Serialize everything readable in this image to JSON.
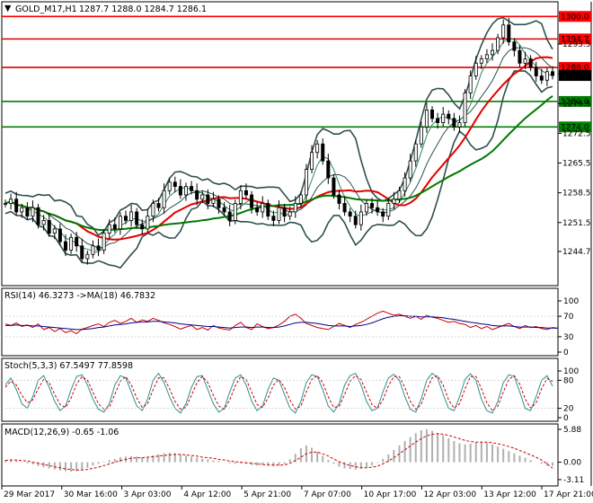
{
  "chart_data": {
    "type": "line",
    "instrument": {
      "header": "GOLD_M17,H1",
      "ohlc": "1287.7 1288.0 1284.7 1286.1",
      "menu_glyph": "▼"
    },
    "time_axis": {
      "labels": [
        "29 Mar 2017",
        "30 Mar 16:00",
        "3 Apr 03:00",
        "4 Apr 12:00",
        "5 Apr 21:00",
        "7 Apr 07:00",
        "10 Apr 17:00",
        "12 Apr 03:00",
        "13 Apr 12:00",
        "17 Apr 21:00"
      ]
    },
    "price_panel": {
      "ylim": [
        1237.5,
        1302.6
      ],
      "tick_labels": [
        "1244.7",
        "1251.5",
        "1258.5",
        "1265.5",
        "1272.5",
        "1279.5",
        "1286.5",
        "1293.5"
      ],
      "tick_values": [
        1244.7,
        1251.5,
        1258.5,
        1265.5,
        1272.5,
        1279.5,
        1286.5,
        1293.5
      ],
      "levels": [
        {
          "label": "1300.0",
          "value": 1300.0,
          "color": "#ff0000",
          "box": "#ff0000"
        },
        {
          "label": "1294.7",
          "value": 1294.7,
          "color": "#dd0000",
          "box": "#ff0000"
        },
        {
          "label": "1288.0",
          "value": 1288.0,
          "color": "#dd0000",
          "box": "#ff0000"
        },
        {
          "label": "1280.0",
          "value": 1280.0,
          "color": "#008000",
          "box": "#008000"
        },
        {
          "label": "1274.0",
          "value": 1274.0,
          "color": "#008000",
          "box": "#008000"
        }
      ],
      "current_price": {
        "label": "1286.1",
        "value": 1286.1
      },
      "close_series": [
        1256,
        1257,
        1254,
        1255,
        1253,
        1255,
        1251,
        1252,
        1249,
        1250,
        1247,
        1245,
        1248,
        1246,
        1243,
        1244,
        1246,
        1245,
        1249,
        1251,
        1250,
        1253,
        1252,
        1254,
        1251,
        1250,
        1253,
        1256,
        1255,
        1259,
        1261,
        1260,
        1258,
        1260,
        1259,
        1257,
        1258,
        1256,
        1257,
        1255,
        1254,
        1252,
        1256,
        1259,
        1258,
        1255,
        1254,
        1256,
        1253,
        1252,
        1255,
        1253,
        1254,
        1256,
        1258,
        1264,
        1268,
        1270,
        1266,
        1262,
        1258,
        1256,
        1254,
        1253,
        1251,
        1254,
        1256,
        1255,
        1254,
        1253,
        1256,
        1257,
        1259,
        1262,
        1266,
        1270,
        1274,
        1278,
        1276,
        1275,
        1277,
        1276,
        1274,
        1275,
        1282,
        1286,
        1289,
        1290,
        1291,
        1292,
        1295,
        1298,
        1294,
        1292,
        1289,
        1290,
        1288,
        1286,
        1285,
        1287,
        1286.1
      ]
    },
    "rsi_panel": {
      "title": "RSI(14) 46.3273 ->MA(18) 46.7832",
      "ylim": [
        0,
        100
      ],
      "tick_labels": [
        "100",
        "70",
        "30",
        "0"
      ],
      "tick_values": [
        100,
        70,
        30,
        0
      ],
      "rsi_last": 46.3273,
      "ma_last": 46.7832,
      "rsi_series": [
        55,
        52,
        57,
        50,
        53,
        48,
        55,
        44,
        48,
        40,
        46,
        38,
        42,
        36,
        45,
        48,
        52,
        55,
        50,
        58,
        62,
        56,
        60,
        66,
        58,
        63,
        60,
        66,
        62,
        57,
        54,
        50,
        45,
        49,
        52,
        44,
        48,
        43,
        52,
        47,
        45,
        43,
        52,
        58,
        48,
        44,
        55,
        50,
        46,
        48,
        53,
        60,
        70,
        74,
        66,
        56,
        52,
        48,
        46,
        44,
        50,
        56,
        52,
        48,
        54,
        58,
        64,
        70,
        76,
        80,
        76,
        72,
        74,
        70,
        66,
        70,
        64,
        72,
        68,
        66,
        62,
        58,
        60,
        56,
        54,
        48,
        52,
        46,
        50,
        44,
        48,
        52,
        56,
        50,
        46,
        52,
        48,
        50,
        46,
        44,
        48,
        46.33
      ],
      "ma_series": [
        52,
        52,
        53,
        52,
        52,
        51,
        51,
        50,
        49,
        48,
        47,
        46,
        45,
        44,
        44,
        45,
        46,
        48,
        49,
        51,
        53,
        54,
        55,
        57,
        58,
        59,
        59,
        60,
        60,
        59,
        58,
        57,
        55,
        54,
        53,
        52,
        51,
        50,
        50,
        49,
        48,
        47,
        48,
        49,
        49,
        48,
        49,
        49,
        48,
        48,
        49,
        51,
        54,
        57,
        58,
        58,
        57,
        56,
        54,
        52,
        51,
        51,
        51,
        50,
        51,
        52,
        54,
        57,
        61,
        65,
        68,
        70,
        71,
        71,
        70,
        70,
        69,
        69,
        69,
        68,
        67,
        65,
        64,
        62,
        60,
        58,
        57,
        55,
        54,
        52,
        51,
        51,
        51,
        50,
        49,
        49,
        49,
        48,
        48,
        47,
        47,
        46.78
      ]
    },
    "stoch_panel": {
      "title": "Stoch(5,3,3) 67.5497 77.8598",
      "ylim": [
        0,
        100
      ],
      "tick_labels": [
        "100",
        "80",
        "20",
        "0"
      ],
      "tick_values": [
        100,
        80,
        20,
        0
      ],
      "k_last": 67.5497,
      "d_last": 77.8598,
      "k_series": [
        70,
        85,
        60,
        30,
        20,
        45,
        80,
        90,
        65,
        35,
        15,
        25,
        60,
        88,
        92,
        70,
        40,
        18,
        12,
        30,
        70,
        90,
        85,
        55,
        25,
        15,
        40,
        80,
        95,
        75,
        45,
        20,
        10,
        30,
        65,
        88,
        90,
        60,
        30,
        12,
        20,
        55,
        85,
        92,
        70,
        35,
        15,
        25,
        60,
        85,
        80,
        50,
        20,
        10,
        35,
        75,
        92,
        88,
        60,
        25,
        12,
        30,
        70,
        90,
        95,
        70,
        35,
        15,
        20,
        55,
        85,
        93,
        80,
        45,
        18,
        12,
        40,
        80,
        95,
        85,
        50,
        20,
        15,
        45,
        82,
        94,
        80,
        40,
        15,
        10,
        35,
        75,
        92,
        88,
        55,
        20,
        15,
        45,
        80,
        90,
        67.55
      ],
      "d_series": [
        65,
        78,
        70,
        48,
        32,
        38,
        62,
        82,
        75,
        50,
        28,
        22,
        42,
        72,
        88,
        80,
        55,
        30,
        18,
        22,
        50,
        78,
        88,
        70,
        42,
        22,
        30,
        60,
        85,
        85,
        62,
        35,
        18,
        22,
        48,
        75,
        88,
        75,
        48,
        25,
        18,
        38,
        68,
        88,
        82,
        55,
        28,
        22,
        42,
        70,
        82,
        65,
        38,
        18,
        25,
        55,
        82,
        90,
        75,
        45,
        22,
        24,
        50,
        78,
        90,
        82,
        55,
        28,
        20,
        38,
        68,
        88,
        88,
        65,
        35,
        18,
        28,
        60,
        85,
        90,
        70,
        38,
        20,
        30,
        62,
        88,
        88,
        62,
        32,
        15,
        25,
        55,
        82,
        90,
        72,
        40,
        20,
        32,
        62,
        84,
        77.86
      ]
    },
    "macd_panel": {
      "title": "MACD(12,26,9) -0.65 -1.06",
      "ylim": [
        -3.6,
        6.2
      ],
      "tick_labels": [
        "5.88",
        "0.00",
        "-3.11"
      ],
      "tick_values": [
        5.88,
        0.0,
        -3.11
      ],
      "macd_last": -0.65,
      "signal_last": -1.06,
      "histogram": [
        0.4,
        0.5,
        0.3,
        0.1,
        -0.2,
        -0.4,
        -0.7,
        -0.9,
        -1.1,
        -1.3,
        -1.5,
        -1.6,
        -1.7,
        -1.6,
        -1.3,
        -1.0,
        -0.6,
        -0.3,
        0.1,
        0.4,
        0.6,
        0.9,
        1.0,
        1.1,
        1.0,
        0.9,
        1.0,
        1.2,
        1.4,
        1.6,
        1.7,
        1.6,
        1.4,
        1.2,
        1.0,
        0.8,
        0.6,
        0.5,
        0.3,
        0.2,
        0.0,
        -0.2,
        -0.3,
        -0.2,
        -0.3,
        -0.5,
        -0.6,
        -0.5,
        -0.6,
        -0.7,
        -0.6,
        -0.3,
        0.5,
        1.5,
        2.5,
        3.0,
        2.6,
        1.9,
        1.1,
        0.4,
        -0.3,
        -0.8,
        -1.1,
        -1.2,
        -1.3,
        -1.2,
        -1.0,
        -0.6,
        -0.1,
        0.6,
        1.4,
        2.2,
        3.0,
        3.8,
        4.5,
        5.2,
        5.7,
        5.9,
        5.6,
        5.2,
        4.8,
        4.3,
        3.8,
        3.4,
        3.2,
        3.3,
        3.5,
        3.6,
        3.5,
        3.2,
        2.8,
        2.4,
        2.0,
        1.6,
        1.2,
        0.8,
        0.4,
        0.0,
        -0.3,
        -0.6,
        -0.65
      ],
      "signal": [
        0.3,
        0.4,
        0.4,
        0.3,
        0.2,
        0.0,
        -0.2,
        -0.4,
        -0.6,
        -0.8,
        -1.0,
        -1.2,
        -1.3,
        -1.4,
        -1.4,
        -1.3,
        -1.1,
        -0.9,
        -0.6,
        -0.3,
        0.0,
        0.3,
        0.5,
        0.7,
        0.8,
        0.8,
        0.9,
        1.0,
        1.1,
        1.2,
        1.3,
        1.4,
        1.4,
        1.3,
        1.2,
        1.1,
        0.9,
        0.8,
        0.7,
        0.5,
        0.4,
        0.2,
        0.1,
        0.0,
        -0.1,
        -0.2,
        -0.3,
        -0.4,
        -0.5,
        -0.5,
        -0.5,
        -0.5,
        -0.2,
        0.3,
        0.9,
        1.5,
        1.8,
        1.8,
        1.5,
        1.1,
        0.6,
        0.1,
        -0.3,
        -0.6,
        -0.8,
        -1.0,
        -1.0,
        -0.9,
        -0.7,
        -0.3,
        0.2,
        0.8,
        1.5,
        2.2,
        2.9,
        3.6,
        4.2,
        4.7,
        5.0,
        5.1,
        5.0,
        4.8,
        4.5,
        4.2,
        3.9,
        3.7,
        3.6,
        3.6,
        3.6,
        3.5,
        3.3,
        3.1,
        2.8,
        2.5,
        2.1,
        1.7,
        1.3,
        0.9,
        0.4,
        -0.3,
        -1.06
      ]
    },
    "colors": {
      "candle": "#000000",
      "bollinger": "#2f4f4f",
      "ma_fast": "#2e8b57",
      "ma_slow_red": "#e60000",
      "ma_slow_green": "#007a00",
      "rsi": "#cc0000",
      "rsi_ma": "#00008b",
      "stoch_k": "#2f8f8f",
      "stoch_d": "#cc0000",
      "macd_hist": "#b0b0b0",
      "macd_signal": "#cc0000"
    }
  }
}
